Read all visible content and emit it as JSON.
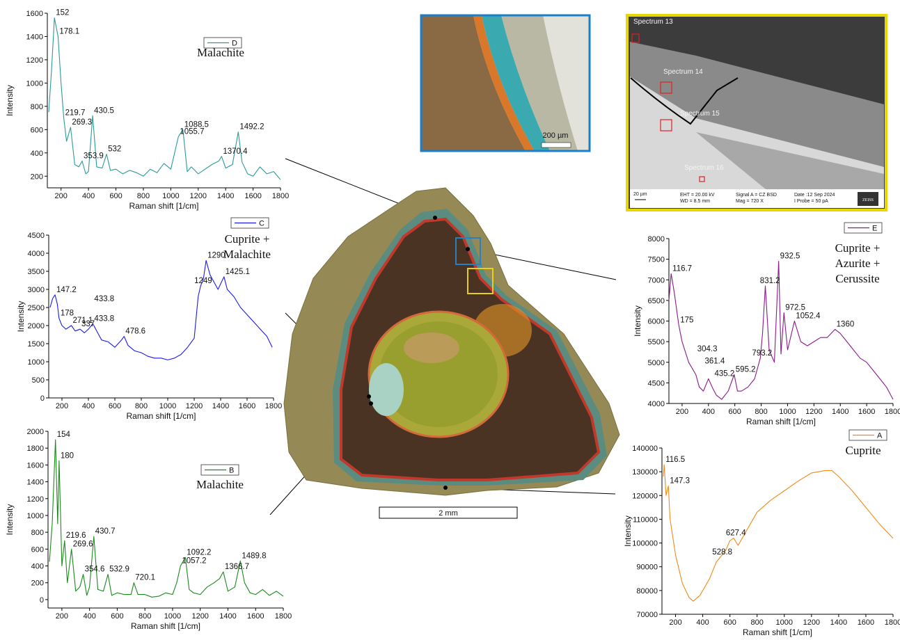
{
  "chart_data": [
    {
      "type": "line",
      "title": [
        "Malachite"
      ],
      "x_label": "Raman shift [1/cm]",
      "y_label": "Intensity",
      "x": [
        110,
        130,
        152,
        178,
        200,
        219.7,
        240,
        269.3,
        300,
        330,
        353.9,
        380,
        400,
        430.5,
        460,
        500,
        532,
        560,
        600,
        650,
        700,
        750,
        800,
        850,
        900,
        950,
        1000,
        1055.7,
        1088.5,
        1120,
        1150,
        1200,
        1250,
        1300,
        1350,
        1370.4,
        1400,
        1450,
        1492.2,
        1520,
        1560,
        1600,
        1650,
        1700,
        1750,
        1800
      ],
      "series": [
        {
          "name": "D",
          "color": "#2a9a9a",
          "values": [
            750,
            1100,
            1560,
            1400,
            1000,
            700,
            500,
            620,
            300,
            280,
            330,
            220,
            240,
            720,
            280,
            270,
            390,
            250,
            260,
            220,
            250,
            230,
            200,
            260,
            230,
            310,
            260,
            540,
            600,
            240,
            280,
            220,
            260,
            300,
            330,
            370,
            270,
            300,
            580,
            320,
            220,
            200,
            280,
            220,
            240,
            170
          ]
        }
      ],
      "xlim": [
        100,
        1800
      ],
      "ylim": [
        100,
        1600
      ],
      "xticks": [
        200,
        400,
        600,
        800,
        1000,
        1200,
        1400,
        1600,
        1800
      ],
      "yticks": [
        200,
        400,
        600,
        800,
        1000,
        1200,
        1400,
        1600
      ],
      "annotations": [
        {
          "x": 152,
          "y": 1560,
          "label": "152"
        },
        {
          "x": 178,
          "y": 1400,
          "label": "178.1"
        },
        {
          "x": 219.7,
          "y": 700,
          "label": "219.7"
        },
        {
          "x": 269.3,
          "y": 620,
          "label": "269.3"
        },
        {
          "x": 430.5,
          "y": 720,
          "label": "430.5"
        },
        {
          "x": 353.9,
          "y": 330,
          "label": "353.9"
        },
        {
          "x": 532,
          "y": 390,
          "label": "532"
        },
        {
          "x": 1055.7,
          "y": 540,
          "label": "1055.7"
        },
        {
          "x": 1088.5,
          "y": 600,
          "label": "1088.5"
        },
        {
          "x": 1370.4,
          "y": 370,
          "label": "1370.4"
        },
        {
          "x": 1492.2,
          "y": 580,
          "label": "1492.2"
        }
      ]
    },
    {
      "type": "line",
      "title": [
        "Cuprite +",
        "Malachite"
      ],
      "x_label": "Raman shift [1/cm]",
      "y_label": "Intensity",
      "x": [
        110,
        130,
        147.2,
        165,
        178,
        200,
        230,
        271.1,
        300,
        337,
        370,
        400,
        433.8,
        470,
        500,
        550,
        600,
        650,
        670,
        700,
        750,
        800,
        850,
        900,
        950,
        1000,
        1050,
        1100,
        1150,
        1200,
        1230,
        1249,
        1270,
        1290,
        1320,
        1350,
        1380,
        1425.1,
        1450,
        1500,
        1550,
        1600,
        1650,
        1700,
        1750,
        1790
      ],
      "series": [
        {
          "name": "C",
          "color": "#1a1aee",
          "values": [
            2500,
            2750,
            2850,
            2600,
            2200,
            2000,
            1900,
            2000,
            1850,
            1900,
            1800,
            1900,
            2050,
            1800,
            1600,
            1550,
            1400,
            1600,
            1700,
            1450,
            1300,
            1250,
            1150,
            1100,
            1100,
            1050,
            1100,
            1200,
            1400,
            1650,
            2800,
            3100,
            3300,
            3800,
            3400,
            3200,
            3000,
            3350,
            3000,
            2800,
            2500,
            2300,
            2100,
            1900,
            1700,
            1400
          ]
        }
      ],
      "xlim": [
        100,
        1800
      ],
      "ylim": [
        0,
        4500
      ],
      "xticks": [
        200,
        400,
        600,
        800,
        1000,
        1200,
        1400,
        1600,
        1800
      ],
      "yticks": [
        0,
        500,
        1000,
        1500,
        2000,
        2500,
        3000,
        3500,
        4000,
        4500
      ],
      "annotations": [
        {
          "x": 147.2,
          "y": 2850,
          "label": "147.2"
        },
        {
          "x": 178,
          "y": 2200,
          "label": "178"
        },
        {
          "x": 271.1,
          "y": 2000,
          "label": "271.1"
        },
        {
          "x": 337,
          "y": 1900,
          "label": "337"
        },
        {
          "x": 433.8,
          "y": 2600,
          "label": "433.8"
        },
        {
          "x": 433.8,
          "y": 2050,
          "label": "433.8"
        },
        {
          "x": 670,
          "y": 1700,
          "label": "478.6"
        },
        {
          "x": 1190,
          "y": 3100,
          "label": "1249"
        },
        {
          "x": 1290,
          "y": 3800,
          "label": "1290"
        },
        {
          "x": 1425.1,
          "y": 3350,
          "label": "1425.1"
        }
      ]
    },
    {
      "type": "line",
      "title": [
        "Malachite"
      ],
      "x_label": "Raman shift [1/cm]",
      "y_label": "Intensity",
      "x": [
        110,
        130,
        154,
        170,
        180,
        200,
        219.6,
        240,
        269.6,
        300,
        330,
        354.6,
        380,
        400,
        430.7,
        460,
        500,
        532.9,
        560,
        600,
        650,
        700,
        720.1,
        750,
        800,
        850,
        900,
        950,
        1000,
        1030,
        1057.2,
        1092.2,
        1120,
        1150,
        1200,
        1250,
        1300,
        1340,
        1366.7,
        1400,
        1450,
        1489.8,
        1520,
        1560,
        1600,
        1650,
        1700,
        1750,
        1800
      ],
      "series": [
        {
          "name": "B",
          "color": "#1a8a1a",
          "values": [
            450,
            900,
            1900,
            900,
            1650,
            400,
            700,
            200,
            600,
            100,
            150,
            300,
            50,
            150,
            750,
            120,
            100,
            300,
            50,
            80,
            60,
            60,
            200,
            60,
            60,
            30,
            40,
            80,
            60,
            200,
            400,
            500,
            120,
            80,
            60,
            150,
            200,
            250,
            330,
            100,
            150,
            460,
            200,
            80,
            60,
            120,
            50,
            100,
            40
          ]
        }
      ],
      "xlim": [
        100,
        1800
      ],
      "ylim": [
        -100,
        2000
      ],
      "xticks": [
        200,
        400,
        600,
        800,
        1000,
        1200,
        1400,
        1600,
        1800
      ],
      "yticks": [
        0,
        200,
        400,
        600,
        800,
        1000,
        1200,
        1400,
        1600,
        1800,
        2000
      ],
      "annotations": [
        {
          "x": 154,
          "y": 1900,
          "label": "154"
        },
        {
          "x": 180,
          "y": 1650,
          "label": "180"
        },
        {
          "x": 219.6,
          "y": 700,
          "label": "219.6"
        },
        {
          "x": 269.6,
          "y": 600,
          "label": "269.6"
        },
        {
          "x": 430.7,
          "y": 750,
          "label": "430.7"
        },
        {
          "x": 354.6,
          "y": 300,
          "label": "354.6"
        },
        {
          "x": 532.9,
          "y": 300,
          "label": "532.9"
        },
        {
          "x": 720.1,
          "y": 200,
          "label": "720.1"
        },
        {
          "x": 1057.2,
          "y": 400,
          "label": "1057.2"
        },
        {
          "x": 1092.2,
          "y": 500,
          "label": "1092.2"
        },
        {
          "x": 1366.7,
          "y": 330,
          "label": "1366.7"
        },
        {
          "x": 1489.8,
          "y": 460,
          "label": "1489.8"
        }
      ]
    },
    {
      "type": "line",
      "title": [
        "Cuprite +",
        "Azurite +",
        "Cerussite"
      ],
      "x_label": "Raman shift [1/cm]",
      "y_label": "Intensity",
      "x": [
        100,
        116.7,
        140,
        175,
        200,
        250,
        304.3,
        330,
        361.4,
        400,
        435.2,
        460,
        500,
        550,
        595.2,
        620,
        650,
        700,
        750,
        793.2,
        810,
        831.2,
        860,
        900,
        932.5,
        950,
        972.5,
        1000,
        1052.4,
        1100,
        1150,
        1200,
        1250,
        1300,
        1360,
        1400,
        1450,
        1500,
        1550,
        1600,
        1650,
        1700,
        1750,
        1800
      ],
      "series": [
        {
          "name": "E",
          "color": "#8a1a8a",
          "values": [
            6500,
            7150,
            6700,
            5900,
            5500,
            5000,
            4700,
            4400,
            4300,
            4600,
            4350,
            4200,
            4100,
            4300,
            4700,
            4300,
            4300,
            4400,
            4600,
            5100,
            5700,
            6850,
            5300,
            5000,
            7450,
            5200,
            6200,
            5300,
            6000,
            5500,
            5400,
            5500,
            5600,
            5600,
            5800,
            5700,
            5500,
            5300,
            5100,
            5000,
            4800,
            4600,
            4400,
            4100
          ]
        }
      ],
      "xlim": [
        100,
        1800
      ],
      "ylim": [
        4000,
        8000
      ],
      "xticks": [
        200,
        400,
        600,
        800,
        1000,
        1200,
        1400,
        1600,
        1800
      ],
      "yticks": [
        4000,
        4500,
        5000,
        5500,
        6000,
        6500,
        7000,
        7500,
        8000
      ],
      "annotations": [
        {
          "x": 116.7,
          "y": 7150,
          "label": "116.7"
        },
        {
          "x": 175,
          "y": 5900,
          "label": "175"
        },
        {
          "x": 304.3,
          "y": 5200,
          "label": "304.3"
        },
        {
          "x": 361.4,
          "y": 4900,
          "label": "361.4"
        },
        {
          "x": 435.2,
          "y": 4600,
          "label": "435.2"
        },
        {
          "x": 595.2,
          "y": 4700,
          "label": "595.2"
        },
        {
          "x": 720,
          "y": 5100,
          "label": "793.2"
        },
        {
          "x": 780,
          "y": 6850,
          "label": "831.2"
        },
        {
          "x": 932.5,
          "y": 7450,
          "label": "932.5"
        },
        {
          "x": 972.5,
          "y": 6200,
          "label": "972.5"
        },
        {
          "x": 1052.4,
          "y": 6000,
          "label": "1052.4"
        },
        {
          "x": 1360,
          "y": 5800,
          "label": "1360"
        }
      ]
    },
    {
      "type": "line",
      "title": [
        "Cuprite"
      ],
      "x_label": "Raman shift [1/cm]",
      "y_label": "Intensity",
      "x": [
        110,
        116.5,
        130,
        147.3,
        160,
        200,
        250,
        300,
        330,
        380,
        450,
        500,
        528.8,
        570,
        600,
        627.4,
        660,
        700,
        800,
        900,
        1000,
        1100,
        1200,
        1300,
        1350,
        1400,
        1500,
        1600,
        1700,
        1800
      ],
      "series": [
        {
          "name": "A",
          "color": "#f08a1a",
          "values": [
            128000,
            133000,
            120000,
            124000,
            110000,
            95000,
            83000,
            77000,
            75500,
            78000,
            85000,
            92000,
            94000,
            97000,
            101000,
            102000,
            99000,
            103000,
            113000,
            118000,
            122000,
            126000,
            129500,
            130500,
            130500,
            128000,
            122000,
            115000,
            108000,
            102000
          ]
        }
      ],
      "xlim": [
        100,
        1800
      ],
      "ylim": [
        70000,
        140000
      ],
      "xticks": [
        200,
        400,
        600,
        800,
        1000,
        1200,
        1400,
        1600,
        1800
      ],
      "yticks": [
        70000,
        80000,
        90000,
        100000,
        110000,
        120000,
        130000,
        140000
      ],
      "annotations": [
        {
          "x": 116.5,
          "y": 133000,
          "label": "116.5"
        },
        {
          "x": 147.3,
          "y": 124000,
          "label": "147.3"
        },
        {
          "x": 460,
          "y": 94000,
          "label": "528.8"
        },
        {
          "x": 560,
          "y": 102000,
          "label": "627.4"
        }
      ]
    }
  ],
  "images": {
    "optical_scale": "200 µm",
    "sem_spectra": [
      "Spectrum 13",
      "Spectrum 14",
      "Spectrum 15",
      "Spectrum 16"
    ],
    "sem_scale": "20 µm",
    "sem_footer": [
      "EHT = 20.00 kV",
      "WD =  8.5 mm",
      "Signal A = CZ BSD",
      "Mag =    720 X",
      "Date :12 Sep 2024",
      "I Probe =    50 pA"
    ],
    "sem_logo": "ZEISS",
    "scale_bar": "2 mm"
  }
}
